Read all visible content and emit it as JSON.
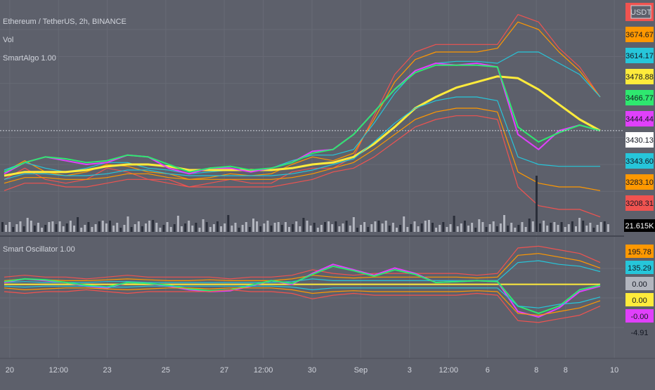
{
  "chart_data": [
    {
      "type": "line",
      "title": "Ethereum / TetherUS, 2h, BINANCE",
      "indicators": [
        "Vol",
        "SmartAlgo 1.00"
      ],
      "currency_label": "USDT",
      "current_price": 3430.13,
      "price_scale": [
        {
          "label": "3674.67",
          "value": 3674.67,
          "color": "#ff9800",
          "text_color": "#131722"
        },
        {
          "label": "3614.17",
          "value": 3614.17,
          "color": "#26c6da",
          "text_color": "#131722"
        },
        {
          "label": "3478.88",
          "value": 3478.88,
          "color": "#ffeb3b",
          "text_color": "#131722"
        },
        {
          "label": "3466.77",
          "value": 3466.77,
          "color": "#2ee86f",
          "text_color": "#131722"
        },
        {
          "label": "3444.44",
          "value": 3444.44,
          "color": "#e040fb",
          "text_color": "#131722"
        },
        {
          "label": "3430.13",
          "value": 3430.13,
          "color": "#ffffff",
          "text_color": "#131722"
        },
        {
          "label": "3343.60",
          "value": 3343.6,
          "color": "#26c6da",
          "text_color": "#131722"
        },
        {
          "label": "3283.10",
          "value": 3283.1,
          "color": "#ff9800",
          "text_color": "#131722"
        },
        {
          "label": "3208.31",
          "value": 3208.31,
          "color": "#ef5350",
          "text_color": "#131722"
        }
      ],
      "volume_label": "21.615K",
      "ylim": [
        3160,
        3760
      ],
      "series": [
        {
          "color": "#ef5350",
          "values": [
            3300,
            3330,
            3300,
            3290,
            3300,
            3330,
            3320,
            3300,
            3300,
            3280,
            3290,
            3300,
            3290,
            3290,
            3320,
            3330,
            3330,
            3360,
            3470,
            3580,
            3640,
            3660,
            3660,
            3660,
            3660,
            3740,
            3720,
            3650,
            3600,
            3520
          ]
        },
        {
          "color": "#ff9800",
          "values": [
            3320,
            3350,
            3320,
            3310,
            3320,
            3340,
            3335,
            3320,
            3315,
            3300,
            3305,
            3315,
            3310,
            3315,
            3340,
            3360,
            3350,
            3370,
            3460,
            3560,
            3620,
            3640,
            3640,
            3640,
            3650,
            3720,
            3700,
            3640,
            3590,
            3520
          ]
        },
        {
          "color": "#26c6da",
          "values": [
            3325,
            3345,
            3330,
            3320,
            3330,
            3345,
            3345,
            3330,
            3325,
            3315,
            3320,
            3325,
            3325,
            3330,
            3350,
            3365,
            3365,
            3380,
            3450,
            3530,
            3590,
            3610,
            3615,
            3615,
            3610,
            3640,
            3640,
            3610,
            3580,
            3520
          ]
        },
        {
          "color": "#ffeb3b",
          "values": [
            3310,
            3320,
            3320,
            3320,
            3325,
            3335,
            3340,
            3340,
            3335,
            3325,
            3325,
            3325,
            3325,
            3325,
            3330,
            3340,
            3345,
            3360,
            3395,
            3440,
            3490,
            3520,
            3545,
            3560,
            3575,
            3570,
            3540,
            3500,
            3460,
            3430
          ]
        },
        {
          "color": "#e040fb",
          "values": [
            3315,
            3345,
            3360,
            3350,
            3340,
            3345,
            3365,
            3360,
            3330,
            3315,
            3330,
            3330,
            3320,
            3330,
            3345,
            3375,
            3380,
            3420,
            3480,
            3540,
            3590,
            3610,
            3605,
            3610,
            3600,
            3420,
            3380,
            3430,
            3445,
            3430
          ]
        },
        {
          "color": "#2ee86f",
          "values": [
            3320,
            3345,
            3360,
            3355,
            3345,
            3350,
            3365,
            3360,
            3340,
            3320,
            3330,
            3335,
            3325,
            3330,
            3345,
            3370,
            3380,
            3420,
            3480,
            3540,
            3585,
            3605,
            3605,
            3605,
            3600,
            3440,
            3400,
            3425,
            3445,
            3430
          ]
        },
        {
          "color": "#ef5350",
          "values": [
            3270,
            3290,
            3290,
            3280,
            3280,
            3290,
            3300,
            3300,
            3290,
            3280,
            3280,
            3280,
            3280,
            3280,
            3290,
            3300,
            3320,
            3330,
            3360,
            3400,
            3440,
            3460,
            3470,
            3470,
            3460,
            3280,
            3230,
            3220,
            3220,
            3200
          ]
        },
        {
          "color": "#ff9800",
          "values": [
            3290,
            3305,
            3305,
            3300,
            3300,
            3305,
            3315,
            3315,
            3305,
            3300,
            3300,
            3300,
            3300,
            3300,
            3305,
            3315,
            3330,
            3345,
            3380,
            3420,
            3460,
            3480,
            3490,
            3490,
            3480,
            3320,
            3290,
            3280,
            3280,
            3270
          ]
        },
        {
          "color": "#26c6da",
          "values": [
            3300,
            3315,
            3315,
            3310,
            3310,
            3315,
            3325,
            3325,
            3315,
            3310,
            3310,
            3310,
            3310,
            3310,
            3315,
            3325,
            3340,
            3355,
            3400,
            3450,
            3490,
            3510,
            3520,
            3520,
            3510,
            3360,
            3340,
            3335,
            3335,
            3335
          ]
        }
      ]
    },
    {
      "type": "line",
      "title": "Smart Oscillator 1.00",
      "scale": [
        {
          "label": "195.78",
          "value": 195.78,
          "color": "#ff9800",
          "text_color": "#131722"
        },
        {
          "label": "135.29",
          "value": 135.29,
          "color": "#26c6da",
          "text_color": "#131722"
        },
        {
          "label": "0.00",
          "value": 0.0,
          "color": "#b2b5be",
          "text_color": "#131722"
        },
        {
          "label": "0.00",
          "value": 0.0,
          "color": "#ffeb3b",
          "text_color": "#131722"
        },
        {
          "label": "-0.00",
          "value": -0.0,
          "color": "#e040fb",
          "text_color": "#131722"
        },
        {
          "label": "-4.91",
          "value": -4.91,
          "color": "#5d606b",
          "text_color": "#131722"
        }
      ],
      "ylim": [
        -400,
        250
      ],
      "series": [
        {
          "color": "#ef5350",
          "values": [
            40,
            50,
            40,
            40,
            30,
            40,
            50,
            40,
            40,
            40,
            40,
            30,
            40,
            40,
            50,
            80,
            60,
            50,
            60,
            60,
            60,
            60,
            60,
            50,
            60,
            200,
            210,
            190,
            170,
            120
          ]
        },
        {
          "color": "#ff9800",
          "values": [
            20,
            30,
            25,
            20,
            20,
            25,
            30,
            25,
            20,
            20,
            25,
            20,
            20,
            20,
            30,
            50,
            40,
            35,
            40,
            40,
            40,
            40,
            40,
            35,
            40,
            160,
            170,
            150,
            130,
            90
          ]
        },
        {
          "color": "#26c6da",
          "values": [
            10,
            15,
            10,
            10,
            10,
            15,
            15,
            10,
            10,
            10,
            10,
            10,
            10,
            10,
            15,
            30,
            20,
            20,
            20,
            20,
            20,
            20,
            20,
            20,
            20,
            120,
            130,
            110,
            100,
            70
          ]
        },
        {
          "color": "#ffeb3b",
          "values": [
            0,
            0,
            0,
            0,
            0,
            0,
            0,
            0,
            0,
            0,
            0,
            0,
            0,
            0,
            0,
            0,
            0,
            0,
            0,
            0,
            0,
            0,
            0,
            0,
            0,
            0,
            0,
            0,
            0,
            0
          ]
        },
        {
          "color": "#e040fb",
          "values": [
            10,
            30,
            20,
            10,
            -10,
            -20,
            10,
            5,
            -10,
            -30,
            -40,
            -35,
            -10,
            20,
            0,
            60,
            110,
            80,
            50,
            90,
            60,
            10,
            15,
            20,
            15,
            -150,
            -180,
            -130,
            -40,
            -10
          ]
        },
        {
          "color": "#2ee86f",
          "values": [
            15,
            30,
            25,
            10,
            -5,
            -15,
            10,
            5,
            -5,
            -25,
            -35,
            -30,
            -5,
            20,
            5,
            55,
            100,
            75,
            45,
            80,
            55,
            10,
            15,
            20,
            15,
            -120,
            -160,
            -120,
            -30,
            -5
          ]
        },
        {
          "color": "#26c6da",
          "values": [
            -10,
            -15,
            -10,
            -10,
            -10,
            -15,
            -15,
            -10,
            -10,
            -10,
            -10,
            -10,
            -10,
            -10,
            -15,
            -30,
            -20,
            -20,
            -20,
            -20,
            -20,
            -20,
            -20,
            -20,
            -20,
            -120,
            -130,
            -110,
            -100,
            -70
          ]
        },
        {
          "color": "#ff9800",
          "values": [
            -20,
            -30,
            -25,
            -20,
            -20,
            -25,
            -30,
            -25,
            -20,
            -20,
            -25,
            -20,
            -20,
            -20,
            -30,
            -50,
            -40,
            -35,
            -40,
            -40,
            -40,
            -40,
            -40,
            -35,
            -40,
            -160,
            -170,
            -150,
            -130,
            -90
          ]
        },
        {
          "color": "#ef5350",
          "values": [
            -40,
            -50,
            -40,
            -40,
            -30,
            -40,
            -50,
            -40,
            -40,
            -40,
            -40,
            -30,
            -40,
            -40,
            -50,
            -80,
            -60,
            -50,
            -60,
            -60,
            -60,
            -60,
            -60,
            -50,
            -60,
            -200,
            -210,
            -190,
            -170,
            -120
          ]
        }
      ]
    }
  ],
  "x_axis": {
    "ticks": [
      {
        "label": "20",
        "pos": 0.5
      },
      {
        "label": "12:00",
        "pos": 3.0
      },
      {
        "label": "23",
        "pos": 5.5
      },
      {
        "label": "25",
        "pos": 8.5
      },
      {
        "label": "27",
        "pos": 11.5
      },
      {
        "label": "12:00",
        "pos": 13.5
      },
      {
        "label": "30",
        "pos": 16.0
      },
      {
        "label": "Sep",
        "pos": 18.5
      },
      {
        "label": "3",
        "pos": 21.0
      },
      {
        "label": "12:00",
        "pos": 23.0
      },
      {
        "label": "6",
        "pos": 25.0
      },
      {
        "label": "8",
        "pos": 27.5
      },
      {
        "label": "8",
        "pos": 29.0
      },
      {
        "label": "10",
        "pos": 31.5
      }
    ],
    "range": [
      0,
      32
    ]
  }
}
